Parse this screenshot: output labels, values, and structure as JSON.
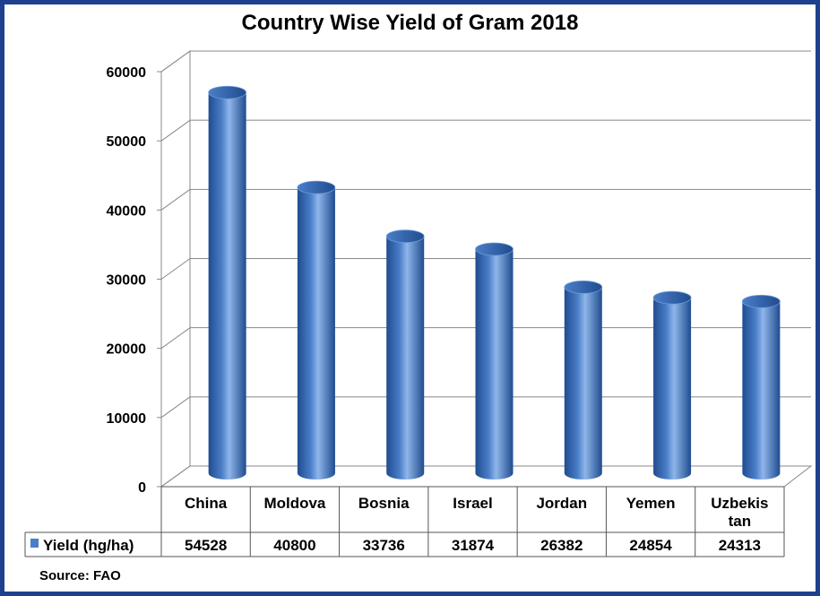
{
  "title": "Country Wise Yield of Gram 2018",
  "source": "Source: FAO",
  "colors": {
    "bar": "#4a7ec8",
    "bar_dark": "#1f4c8f",
    "bar_light": "#8fb6ea",
    "frame": "#1f3f8f",
    "grid": "#888888"
  },
  "chart_data": {
    "type": "bar",
    "title": "Country Wise Yield of Gram 2018",
    "categories": [
      "China",
      "Moldova",
      "Bosnia",
      "Israel",
      "Jordan",
      "Yemen",
      "Uzbekis tan"
    ],
    "category_lines": [
      [
        "China"
      ],
      [
        "Moldova"
      ],
      [
        "Bosnia"
      ],
      [
        "Israel"
      ],
      [
        "Jordan"
      ],
      [
        "Yemen"
      ],
      [
        "Uzbekis",
        "tan"
      ]
    ],
    "series": [
      {
        "name": "Yield (hg/ha)",
        "values": [
          54528,
          40800,
          33736,
          31874,
          26382,
          24854,
          24313
        ]
      }
    ],
    "y_ticks": [
      "0",
      "10000",
      "20000",
      "30000",
      "40000",
      "50000",
      "60000"
    ],
    "ylim": [
      0,
      60000
    ],
    "grid": true,
    "data_table": true,
    "style": "3d-cylinder"
  }
}
